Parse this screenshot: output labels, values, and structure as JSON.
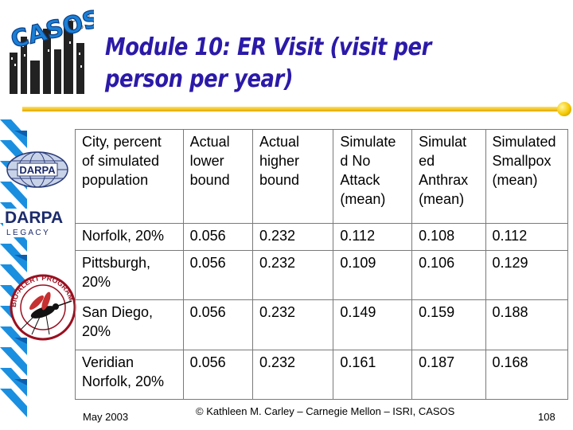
{
  "slide": {
    "title": "Module 10: ER Visit (visit per person per year)",
    "logos": {
      "casos": "CASOS",
      "darpa": "DARPA",
      "legacy_top": "DARPA",
      "legacy_bottom": "L E G A C Y",
      "bioalert": "BIO-ALERT PROGRAM"
    },
    "colors": {
      "title": "#2b1aa8",
      "accent_bar": "#1a8fe0",
      "accent_line": "#f0b800"
    }
  },
  "table": {
    "headers": [
      "City, percent of simulated population",
      "Actual lower bound",
      "Actual higher bound",
      "Simulated No Attack (mean)",
      "Simulated Anthrax (mean)",
      "Simulated Smallpox (mean)"
    ],
    "header_display": [
      [
        "City, percent",
        "of simulated",
        "population"
      ],
      [
        "Actual",
        "lower",
        "bound"
      ],
      [
        "Actual",
        "higher",
        "bound"
      ],
      [
        "Simulate",
        "d No",
        "Attack",
        "(mean)"
      ],
      [
        "Simulat",
        "ed",
        "Anthrax",
        "(mean)"
      ],
      [
        "Simulated",
        "Smallpox",
        "(mean)"
      ]
    ],
    "rows": [
      [
        "Norfolk, 20%",
        "0.056",
        "0.232",
        "0.112",
        "0.108",
        "0.112"
      ],
      [
        "Pittsburgh, 20%",
        "0.056",
        "0.232",
        "0.109",
        "0.106",
        "0.129"
      ],
      [
        "San Diego, 20%",
        "0.056",
        "0.232",
        "0.149",
        "0.159",
        "0.188"
      ],
      [
        "Veridian Norfolk, 20%",
        "0.056",
        "0.232",
        "0.161",
        "0.187",
        "0.168"
      ]
    ]
  },
  "footer": {
    "date": "May 2003",
    "copyright": "© Kathleen M. Carley – Carnegie Mellon – ISRI, CASOS",
    "page": "108"
  }
}
